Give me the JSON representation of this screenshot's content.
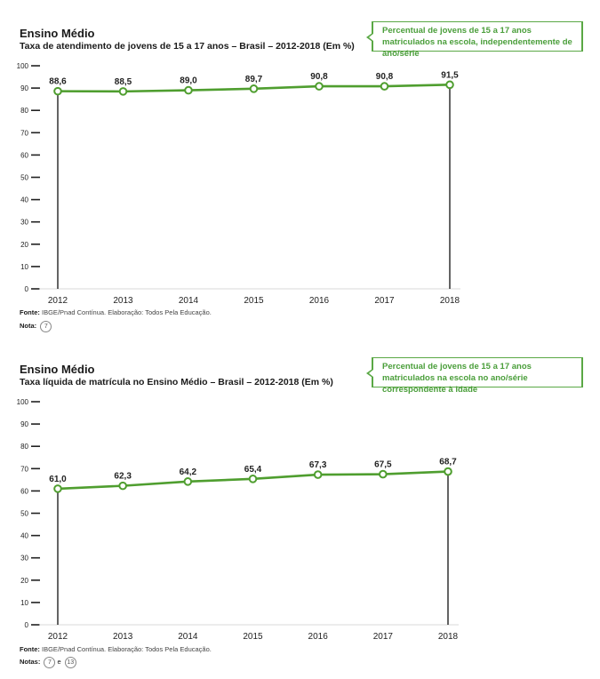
{
  "charts": [
    {
      "title": "Ensino Médio",
      "subtitle": "Taxa de atendimento de jovens de 15 a 17 anos – Brasil – 2012-2018 (Em %)",
      "callout": "Percentual de jovens de 15 a 17 anos matriculados na escola, independentemente de ano/série",
      "source_label": "Fonte:",
      "source_text": "IBGE/Pnad Contínua. Elaboração: Todos Pela Educação.",
      "note_label": "Nota:",
      "note_refs": [
        "7"
      ],
      "note_joiner": ""
    },
    {
      "title": "Ensino Médio",
      "subtitle": "Taxa líquida de matrícula no Ensino Médio – Brasil – 2012-2018 (Em %)",
      "callout": "Percentual de jovens de 15 a 17 anos matriculados na escola no ano/série correspondente à idade",
      "source_label": "Fonte:",
      "source_text": "IBGE/Pnad Contínua. Elaboração: Todos Pela Educação.",
      "note_label": "Notas:",
      "note_refs": [
        "7",
        "13"
      ],
      "note_joiner": "e"
    }
  ],
  "chart_data": [
    {
      "type": "line",
      "title": "Ensino Médio",
      "subtitle": "Taxa de atendimento de jovens de 15 a 17 anos – Brasil – 2012-2018 (Em %)",
      "x": [
        "2012",
        "2013",
        "2014",
        "2015",
        "2016",
        "2017",
        "2018"
      ],
      "series": [
        {
          "values": [
            88.6,
            88.5,
            89.0,
            89.7,
            90.8,
            90.8,
            91.5
          ]
        }
      ],
      "data_labels": [
        "88,6",
        "88,5",
        "89,0",
        "89,7",
        "90,8",
        "90,8",
        "91,5"
      ],
      "yticks": [
        "0",
        "10",
        "20",
        "30",
        "40",
        "50",
        "60",
        "70",
        "80",
        "90",
        "100"
      ],
      "ylim": [
        0,
        100
      ],
      "grid": false,
      "line_color": "#4f9e2f"
    },
    {
      "type": "line",
      "title": "Ensino Médio",
      "subtitle": "Taxa líquida de matrícula no Ensino Médio – Brasil – 2012-2018 (Em %)",
      "x": [
        "2012",
        "2013",
        "2014",
        "2015",
        "2016",
        "2017",
        "2018"
      ],
      "series": [
        {
          "values": [
            61.0,
            62.3,
            64.2,
            65.4,
            67.3,
            67.5,
            68.7
          ]
        }
      ],
      "data_labels": [
        "61,0",
        "62,3",
        "64,2",
        "65,4",
        "67,3",
        "67,5",
        "68,7"
      ],
      "yticks": [
        "0",
        "10",
        "20",
        "30",
        "40",
        "50",
        "60",
        "70",
        "80",
        "90",
        "100"
      ],
      "ylim": [
        0,
        100
      ],
      "grid": false,
      "line_color": "#4f9e2f"
    }
  ]
}
